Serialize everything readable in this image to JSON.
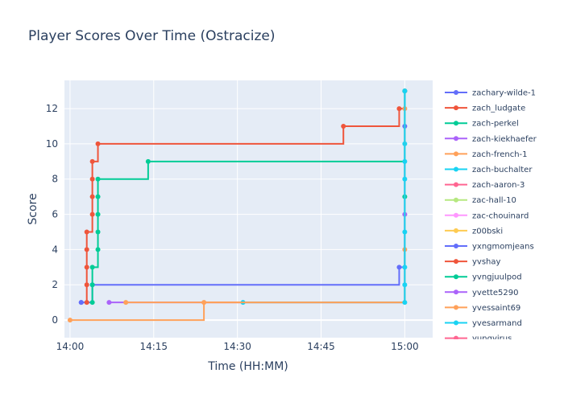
{
  "chart_data": {
    "type": "line",
    "title": "Player Scores Over Time (Ostracize)",
    "xlabel": "Time (HH:MM)",
    "ylabel": "Score",
    "x_ticks": [
      "14:00",
      "14:15",
      "14:30",
      "14:45",
      "15:00"
    ],
    "y_ticks": [
      0,
      2,
      4,
      6,
      8,
      10,
      12
    ],
    "xlim": [
      "13:59",
      "15:05"
    ],
    "ylim": [
      -1,
      13.6
    ],
    "grid": true,
    "legend_position": "right",
    "line_shape": "step",
    "series": [
      {
        "name": "zachary-wilde-1",
        "color": "#636efa",
        "points": [
          [
            "14:02",
            1
          ],
          [
            "14:02",
            1
          ],
          [
            "14:04",
            2
          ],
          [
            "14:59",
            3
          ],
          [
            "15:00",
            11
          ]
        ]
      },
      {
        "name": "zach_ludgate",
        "color": "#EF553B",
        "points": [
          [
            "14:03",
            1
          ],
          [
            "14:03",
            2
          ],
          [
            "14:03",
            3
          ],
          [
            "14:03",
            4
          ],
          [
            "14:03",
            5
          ],
          [
            "14:04",
            6
          ],
          [
            "14:04",
            7
          ],
          [
            "14:04",
            8
          ],
          [
            "14:04",
            9
          ],
          [
            "14:05",
            10
          ],
          [
            "14:49",
            11
          ],
          [
            "14:59",
            12
          ],
          [
            "15:00",
            13
          ]
        ]
      },
      {
        "name": "zach-perkel",
        "color": "#00cc96",
        "points": [
          [
            "14:04",
            1
          ],
          [
            "14:04",
            2
          ],
          [
            "14:04",
            3
          ],
          [
            "14:05",
            4
          ],
          [
            "14:05",
            5
          ],
          [
            "14:05",
            6
          ],
          [
            "14:05",
            7
          ],
          [
            "14:05",
            8
          ],
          [
            "14:14",
            9
          ],
          [
            "15:00",
            13
          ]
        ]
      },
      {
        "name": "zach-kiekhaefer",
        "color": "#ab63fa",
        "points": [
          [
            "14:07",
            1
          ],
          [
            "15:00",
            6
          ]
        ]
      },
      {
        "name": "zach-french-1",
        "color": "#FFA15A",
        "points": [
          [
            "14:00",
            0
          ],
          [
            "14:24",
            1
          ],
          [
            "15:00",
            4
          ]
        ]
      },
      {
        "name": "zach-buchalter",
        "color": "#19d3f3",
        "points": [
          [
            "14:31",
            1
          ],
          [
            "15:00",
            10
          ]
        ]
      },
      {
        "name": "zach-aaron-3",
        "color": "#FF6692",
        "points": []
      },
      {
        "name": "zac-hall-10",
        "color": "#B6E880",
        "points": []
      },
      {
        "name": "zac-chouinard",
        "color": "#FF97FF",
        "points": []
      },
      {
        "name": "z00bski",
        "color": "#FECB52",
        "points": []
      },
      {
        "name": "yxngmomjeans",
        "color": "#636efa",
        "points": []
      },
      {
        "name": "yvshay",
        "color": "#EF553B",
        "points": []
      },
      {
        "name": "yvngjuulpod",
        "color": "#00cc96",
        "points": [
          [
            "15:00",
            7
          ]
        ]
      },
      {
        "name": "yvette5290",
        "color": "#ab63fa",
        "points": []
      },
      {
        "name": "yvessaint69",
        "color": "#FFA15A",
        "points": [
          [
            "14:10",
            1
          ],
          [
            "15:00",
            12
          ]
        ]
      },
      {
        "name": "yvesarmand",
        "color": "#19d3f3",
        "points": [
          [
            "15:00",
            1
          ],
          [
            "15:00",
            2
          ],
          [
            "15:00",
            3
          ],
          [
            "15:00",
            5
          ],
          [
            "15:00",
            8
          ],
          [
            "15:00",
            9
          ],
          [
            "15:00",
            13
          ]
        ]
      },
      {
        "name": "yungvirus",
        "color": "#FF6692",
        "points": []
      }
    ]
  }
}
